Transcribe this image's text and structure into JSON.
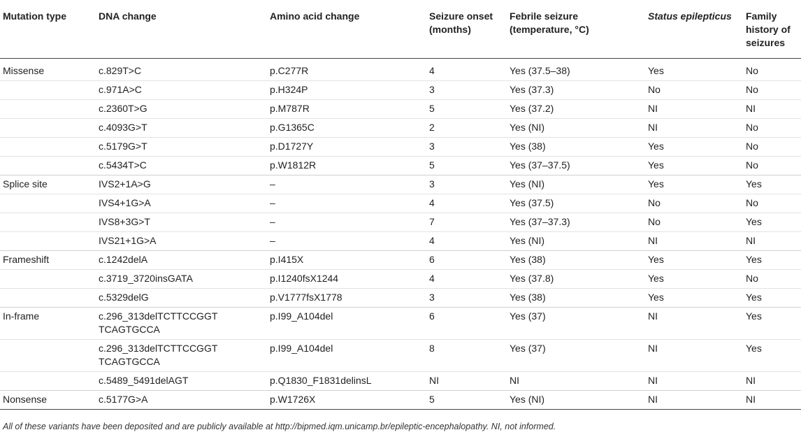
{
  "headers": {
    "mutation_type": "Mutation type",
    "dna_change": "DNA change",
    "amino_acid_change": "Amino acid change",
    "seizure_onset": "Seizure onset (months)",
    "febrile_seizure": "Febrile seizure (temperature, °C)",
    "status_epilepticus": "Status epilepticus",
    "family_history": "Family history of seizures"
  },
  "rows": [
    {
      "type": "Missense",
      "dna": "c.829T>C",
      "aa": "p.C277R",
      "onset": "4",
      "febrile": "Yes (37.5–38)",
      "status": "Yes",
      "family": "No"
    },
    {
      "type": "",
      "dna": "c.971A>C",
      "aa": "p.H324P",
      "onset": "3",
      "febrile": "Yes (37.3)",
      "status": "No",
      "family": "No"
    },
    {
      "type": "",
      "dna": "c.2360T>G",
      "aa": "p.M787R",
      "onset": "5",
      "febrile": "Yes (37.2)",
      "status": "NI",
      "family": "NI"
    },
    {
      "type": "",
      "dna": "c.4093G>T",
      "aa": "p.G1365C",
      "onset": "2",
      "febrile": "Yes (NI)",
      "status": "NI",
      "family": "No"
    },
    {
      "type": "",
      "dna": "c.5179G>T",
      "aa": "p.D1727Y",
      "onset": "3",
      "febrile": "Yes (38)",
      "status": "Yes",
      "family": "No"
    },
    {
      "type": "",
      "dna": "c.5434T>C",
      "aa": "p.W1812R",
      "onset": "5",
      "febrile": "Yes (37–37.5)",
      "status": "Yes",
      "family": "No"
    },
    {
      "type": "Splice site",
      "dna": "IVS2+1A>G",
      "aa": "–",
      "onset": "3",
      "febrile": "Yes (NI)",
      "status": "Yes",
      "family": "Yes"
    },
    {
      "type": "",
      "dna": "IVS4+1G>A",
      "aa": "–",
      "onset": "4",
      "febrile": "Yes (37.5)",
      "status": "No",
      "family": "No"
    },
    {
      "type": "",
      "dna": "IVS8+3G>T",
      "aa": "–",
      "onset": "7",
      "febrile": "Yes (37–37.3)",
      "status": "No",
      "family": "Yes"
    },
    {
      "type": "",
      "dna": "IVS21+1G>A",
      "aa": "–",
      "onset": "4",
      "febrile": "Yes (NI)",
      "status": "NI",
      "family": "NI"
    },
    {
      "type": "Frameshift",
      "dna": "c.1242delA",
      "aa": "p.I415X",
      "onset": "6",
      "febrile": "Yes (38)",
      "status": "Yes",
      "family": "Yes"
    },
    {
      "type": "",
      "dna": "c.3719_3720insGATA",
      "aa": "p.I1240fsX1244",
      "onset": "4",
      "febrile": "Yes (37.8)",
      "status": "Yes",
      "family": "No"
    },
    {
      "type": "",
      "dna": "c.5329delG",
      "aa": "p.V1777fsX1778",
      "onset": "3",
      "febrile": "Yes (38)",
      "status": "Yes",
      "family": "Yes"
    },
    {
      "type": "In-frame",
      "dna": "c.296_313delTCTTCCGGT TCAGTGCCA",
      "aa": "p.I99_A104del",
      "onset": "6",
      "febrile": "Yes (37)",
      "status": "NI",
      "family": "Yes"
    },
    {
      "type": "",
      "dna": "c.296_313delTCTTCCGGT TCAGTGCCA",
      "aa": "p.I99_A104del",
      "onset": "8",
      "febrile": "Yes (37)",
      "status": "NI",
      "family": "Yes"
    },
    {
      "type": "",
      "dna": "c.5489_5491delAGT",
      "aa": "p.Q1830_F1831delinsL",
      "onset": "NI",
      "febrile": "NI",
      "status": "NI",
      "family": "NI"
    },
    {
      "type": "Nonsense",
      "dna": "c.5177G>A",
      "aa": "p.W1726X",
      "onset": "5",
      "febrile": "Yes (NI)",
      "status": "NI",
      "family": "NI"
    }
  ],
  "footnote": "All of these variants have been deposited and are publicly available at http://bipmed.iqm.unicamp.br/epileptic-encephalopathy. NI, not informed."
}
